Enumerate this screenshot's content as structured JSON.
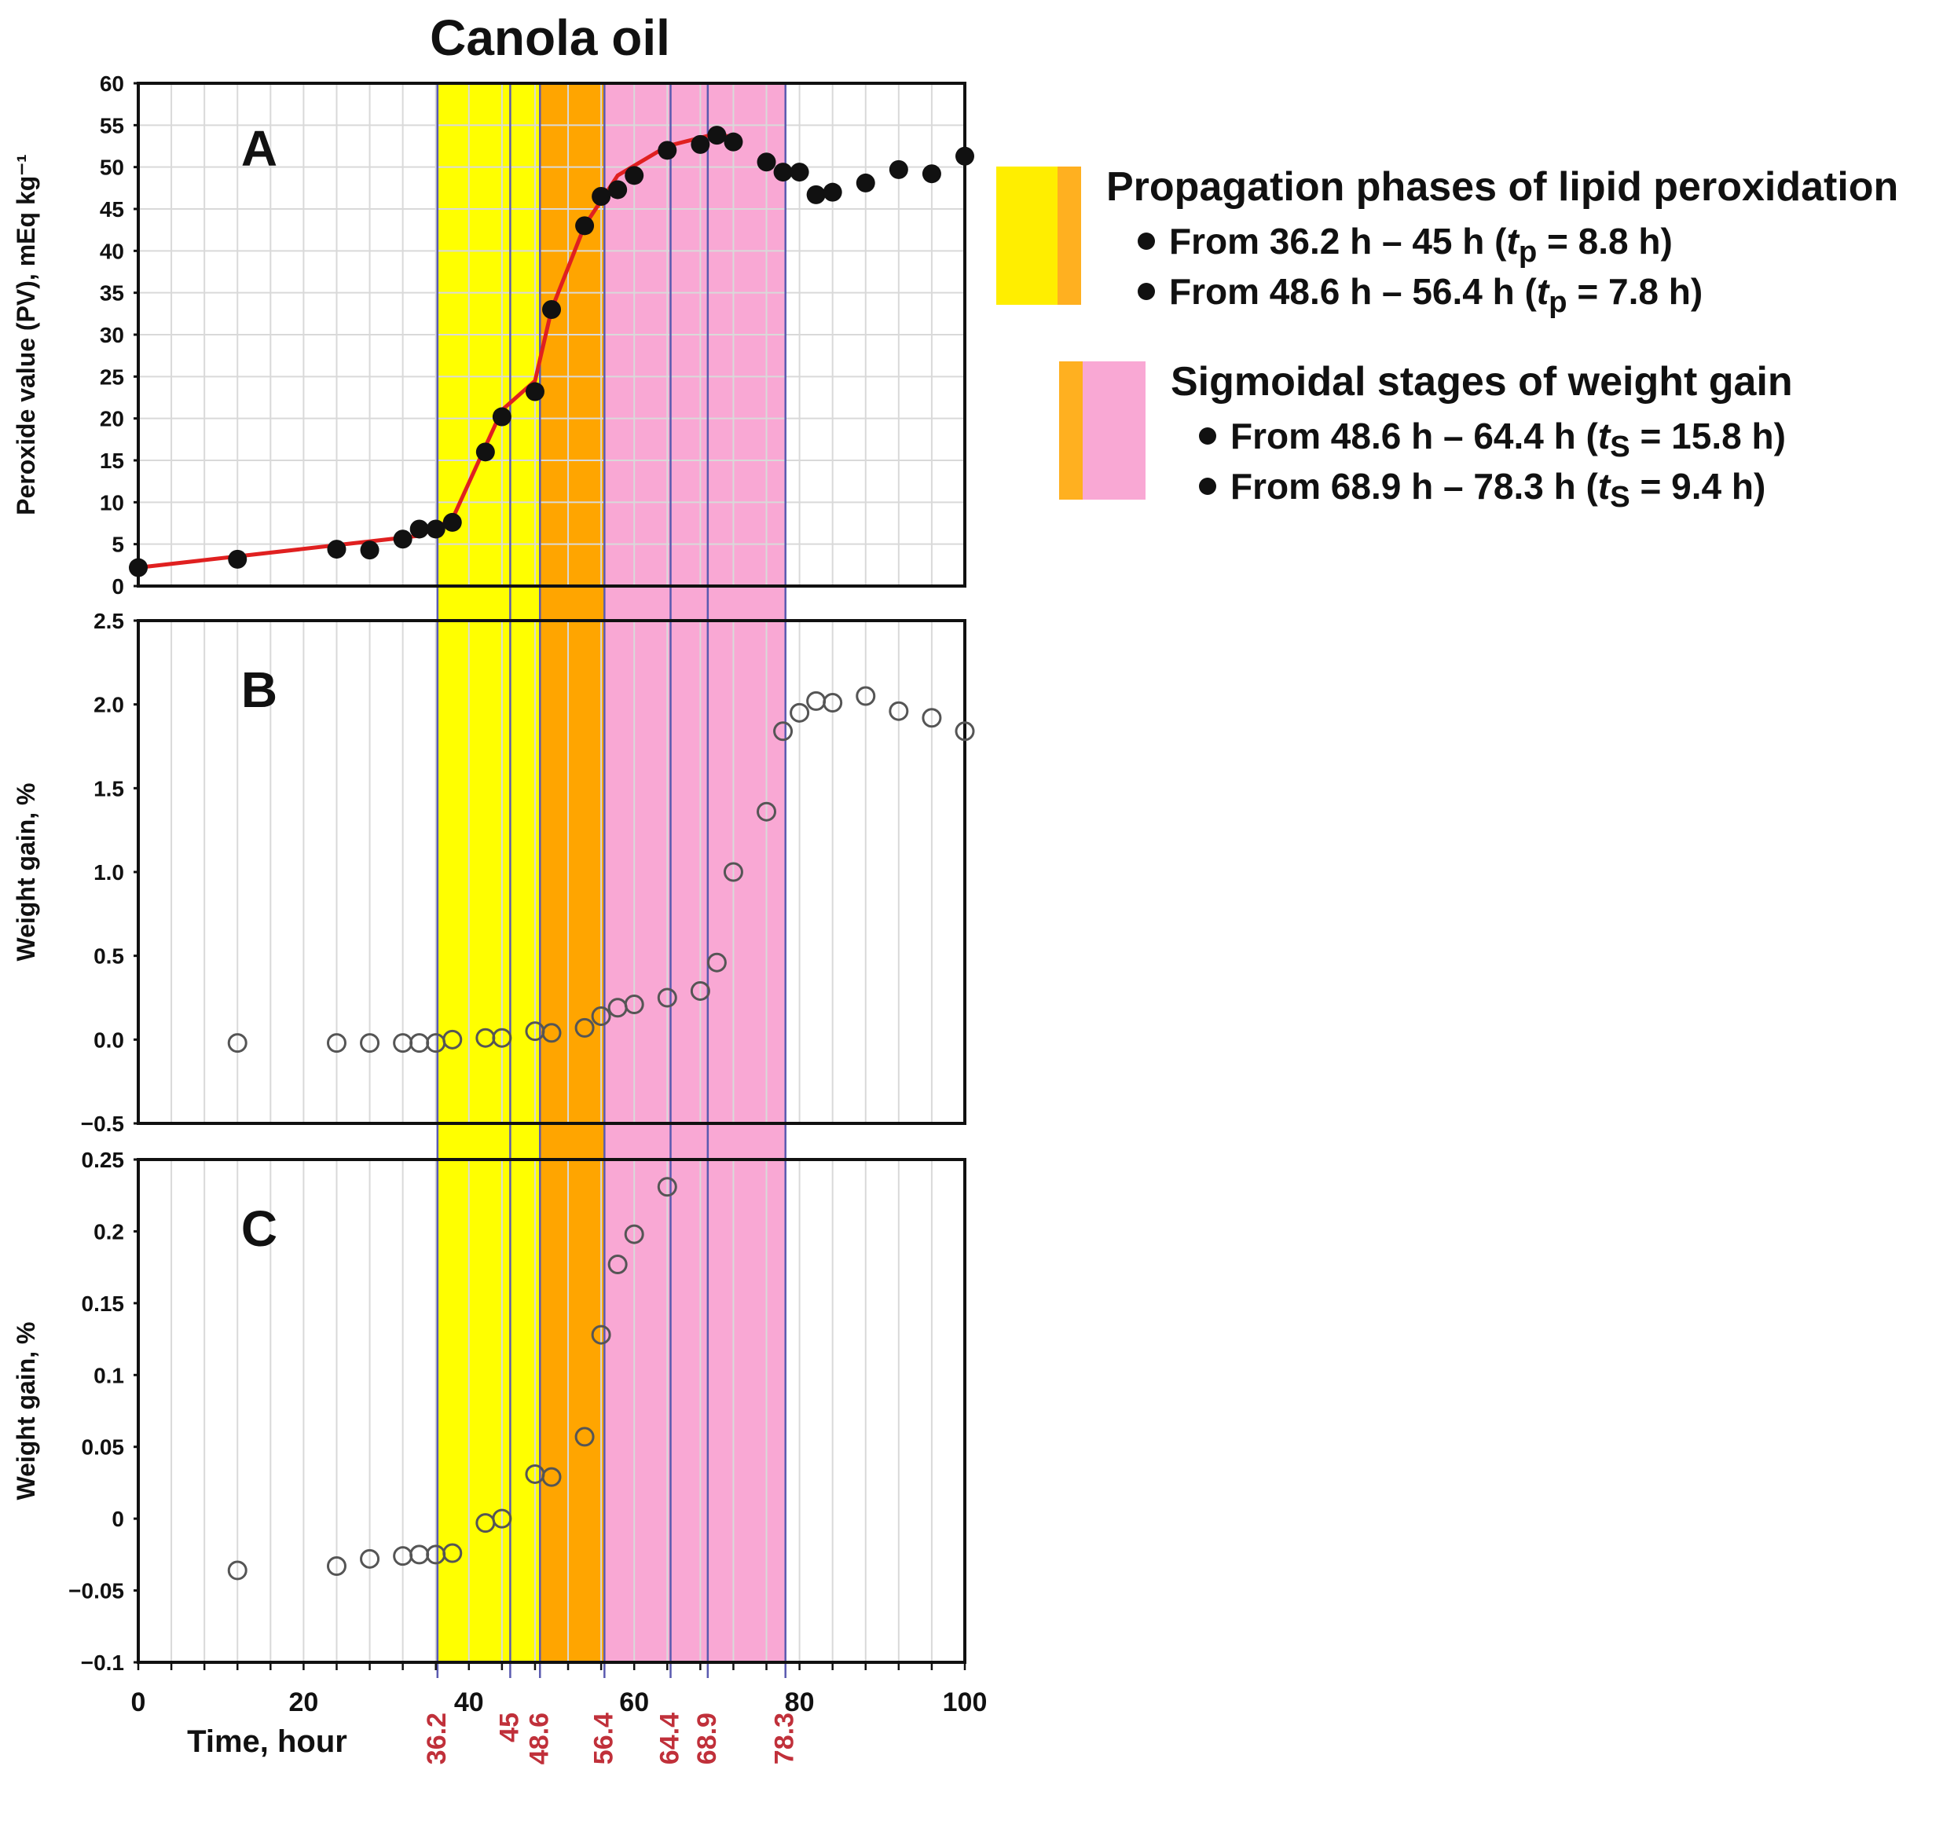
{
  "chart_data": {
    "type": "scatter",
    "title": "Canola oil",
    "xlabel": "Time, hour",
    "xlim": [
      0,
      100
    ],
    "xticks": [
      0,
      20,
      40,
      60,
      80,
      100
    ],
    "phase_lines": [
      36.2,
      45,
      48.6,
      56.4,
      64.4,
      68.9,
      78.3
    ],
    "phase_line_labels": [
      "36.2",
      "45",
      "48.6",
      "56.4",
      "64.4",
      "68.9",
      "78.3"
    ],
    "bands": [
      {
        "from": 36.2,
        "to": 48.6,
        "color": "#ffff00"
      },
      {
        "from": 48.6,
        "to": 56.4,
        "color": "#ffa500"
      },
      {
        "from": 56.4,
        "to": 78.3,
        "color": "#f9a8d4"
      }
    ],
    "panels": [
      {
        "label": "A",
        "ylabel": "Peroxide value (PV), mEq kg⁻¹",
        "ylim": [
          0,
          60
        ],
        "yticks": [
          0,
          5,
          10,
          15,
          20,
          25,
          30,
          35,
          40,
          45,
          50,
          55,
          60
        ],
        "ytick_labels": [
          "0",
          "5",
          "10",
          "15",
          "20",
          "25",
          "30",
          "35",
          "40",
          "45",
          "50",
          "55",
          "60"
        ],
        "marker": "filled",
        "points": [
          [
            0,
            2.2
          ],
          [
            12,
            3.2
          ],
          [
            24,
            4.4
          ],
          [
            28,
            4.3
          ],
          [
            32,
            5.6
          ],
          [
            34,
            6.8
          ],
          [
            36,
            6.8
          ],
          [
            38,
            7.6
          ],
          [
            42,
            16
          ],
          [
            44,
            20.2
          ],
          [
            48,
            23.2
          ],
          [
            50,
            33
          ],
          [
            54,
            43
          ],
          [
            56,
            46.5
          ],
          [
            58,
            47.3
          ],
          [
            60,
            49
          ],
          [
            64,
            52
          ],
          [
            68,
            52.7
          ],
          [
            70,
            53.8
          ],
          [
            72,
            53
          ],
          [
            76,
            50.6
          ],
          [
            78,
            49.4
          ],
          [
            80,
            49.4
          ],
          [
            82,
            46.7
          ],
          [
            84,
            47
          ],
          [
            88,
            48.1
          ],
          [
            92,
            49.7
          ],
          [
            96,
            49.2
          ],
          [
            100,
            51.3
          ]
        ],
        "fit_line": [
          [
            0,
            2.2
          ],
          [
            34,
            6
          ],
          [
            38,
            8
          ],
          [
            44,
            21
          ],
          [
            48,
            24.5
          ],
          [
            50,
            33
          ],
          [
            54,
            43
          ],
          [
            58,
            49
          ],
          [
            64,
            52.5
          ],
          [
            70,
            54
          ],
          [
            72,
            53.5
          ]
        ],
        "fit_color": "#e02020"
      },
      {
        "label": "B",
        "ylabel": "Weight gain, %",
        "ylim": [
          -0.5,
          2.5
        ],
        "yticks": [
          -0.5,
          0,
          0.5,
          1,
          1.5,
          2,
          2.5
        ],
        "ytick_labels": [
          "−0.5",
          "0.0",
          "0.5",
          "1.0",
          "1.5",
          "2.0",
          "2.5"
        ],
        "marker": "open",
        "points": [
          [
            12,
            -0.02
          ],
          [
            24,
            -0.02
          ],
          [
            28,
            -0.02
          ],
          [
            32,
            -0.02
          ],
          [
            34,
            -0.02
          ],
          [
            36,
            -0.02
          ],
          [
            38,
            0
          ],
          [
            42,
            0.01
          ],
          [
            44,
            0.01
          ],
          [
            48,
            0.05
          ],
          [
            50,
            0.04
          ],
          [
            54,
            0.07
          ],
          [
            56,
            0.14
          ],
          [
            58,
            0.19
          ],
          [
            60,
            0.21
          ],
          [
            64,
            0.25
          ],
          [
            68,
            0.29
          ],
          [
            70,
            0.46
          ],
          [
            72,
            1
          ],
          [
            76,
            1.36
          ],
          [
            78,
            1.84
          ],
          [
            80,
            1.95
          ],
          [
            82,
            2.02
          ],
          [
            84,
            2.01
          ],
          [
            88,
            2.05
          ],
          [
            92,
            1.96
          ],
          [
            96,
            1.92
          ],
          [
            100,
            1.84
          ]
        ]
      },
      {
        "label": "C",
        "ylabel": "Weight gain, %",
        "ylim": [
          -0.1,
          0.25
        ],
        "yticks": [
          -0.1,
          -0.05,
          0,
          0.05,
          0.1,
          0.15,
          0.2,
          0.25
        ],
        "ytick_labels": [
          "−0.1",
          "−0.05",
          "0",
          "0.05",
          "0.1",
          "0.15",
          "0.2",
          "0.25"
        ],
        "marker": "open",
        "points": [
          [
            12,
            -0.036
          ],
          [
            24,
            -0.033
          ],
          [
            28,
            -0.028
          ],
          [
            32,
            -0.026
          ],
          [
            34,
            -0.025
          ],
          [
            36,
            -0.025
          ],
          [
            38,
            -0.024
          ],
          [
            42,
            -0.003
          ],
          [
            44,
            0
          ],
          [
            48,
            0.031
          ],
          [
            50,
            0.029
          ],
          [
            54,
            0.057
          ],
          [
            56,
            0.128
          ],
          [
            58,
            0.177
          ],
          [
            60,
            0.198
          ],
          [
            64,
            0.231
          ]
        ]
      }
    ]
  },
  "legend": {
    "propagation_title": "Propagation phases of lipid peroxidation",
    "propagation_items": [
      {
        "text": "From 36.2 h – 45 h (",
        "sym": "t",
        "sub": "p",
        "tail": " = 8.8 h)"
      },
      {
        "text": "From 48.6 h – 56.4 h (",
        "sym": "t",
        "sub": "p",
        "tail": " = 7.8 h)"
      }
    ],
    "sigmoidal_title": "Sigmoidal stages of weight gain",
    "sigmoidal_items": [
      {
        "text": "From 48.6 h – 64.4 h (",
        "sym": "t",
        "sub": "S",
        "tail": " = 15.8 h)"
      },
      {
        "text": "From 68.9 h – 78.3 h (",
        "sym": "t",
        "sub": "S",
        "tail": " = 9.4 h)"
      }
    ],
    "colors": {
      "yellow": "#ffee00",
      "orange": "#ffb020",
      "pink": "#f9a8d4"
    }
  }
}
